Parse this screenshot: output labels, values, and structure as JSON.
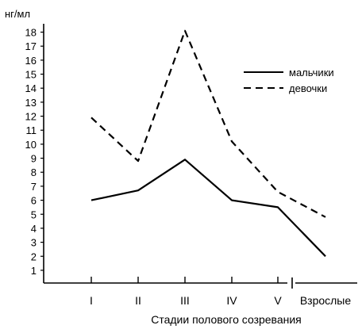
{
  "chart_data": {
    "type": "line",
    "title": "",
    "ylabel": "нг/мл",
    "xlabel": "Стадии полового созревания",
    "categories": [
      "I",
      "II",
      "III",
      "IV",
      "V",
      "Взрослые"
    ],
    "ylim": [
      0,
      19
    ],
    "yticks": [
      1,
      2,
      3,
      4,
      5,
      6,
      7,
      8,
      9,
      10,
      11,
      12,
      13,
      14,
      15,
      16,
      17,
      18
    ],
    "legend_position": "top-right",
    "series": [
      {
        "name": "мальчики",
        "style": "solid",
        "color": "#000000",
        "values": [
          6.0,
          6.7,
          8.9,
          6.0,
          5.5,
          2.0
        ]
      },
      {
        "name": "девочки",
        "style": "dashed",
        "color": "#000000",
        "values": [
          11.9,
          8.8,
          18.1,
          10.2,
          6.6,
          4.8
        ]
      }
    ]
  }
}
